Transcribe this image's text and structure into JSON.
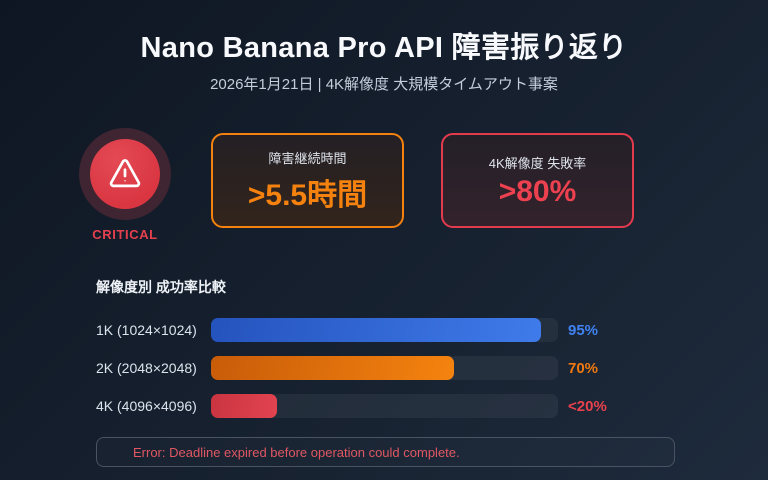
{
  "header": {
    "title": "Nano Banana Pro API 障害振り返り",
    "subtitle": "2026年1月21日 | 4K解像度 大規模タイムアウト事案"
  },
  "badge": {
    "label": "CRITICAL",
    "icon": "warning-triangle-icon",
    "color": "#d93642"
  },
  "stats": [
    {
      "label": "障害継続時間",
      "value": ">5.5時間",
      "accent": "#f5820f"
    },
    {
      "label": "4K解像度 失敗率",
      "value": ">80%",
      "accent": "#ee4150"
    }
  ],
  "chart_data": {
    "type": "bar",
    "orientation": "horizontal",
    "title": "解像度別 成功率比較",
    "categories": [
      "1K (1024×1024)",
      "2K (2048×2048)",
      "4K (4096×4096)"
    ],
    "values": [
      95,
      70,
      19
    ],
    "value_labels": [
      "95%",
      "70%",
      "<20%"
    ],
    "xlim": [
      0,
      100
    ],
    "grid": false,
    "legend": false,
    "bar_gradients": [
      [
        "#2553bd",
        "#3f7bea"
      ],
      [
        "#c85c09",
        "#f5830f"
      ],
      [
        "#c93440",
        "#e24450"
      ]
    ],
    "label_colors": [
      "#3f82f2",
      "#f0790f",
      "#e8414d"
    ],
    "track_color": "rgba(255,255,255,0.055)"
  },
  "error_banner": {
    "text": "Error: Deadline expired before operation could complete."
  },
  "colors": {
    "background_start": "#0f1623",
    "background_end": "#1e2b3c",
    "title_text": "#f7f9fc",
    "subtitle_text": "#c4cdda",
    "critical_red": "#e4404e",
    "duration_orange": "#f5820f",
    "failure_red": "#ee4150",
    "error_text": "#e05763"
  }
}
